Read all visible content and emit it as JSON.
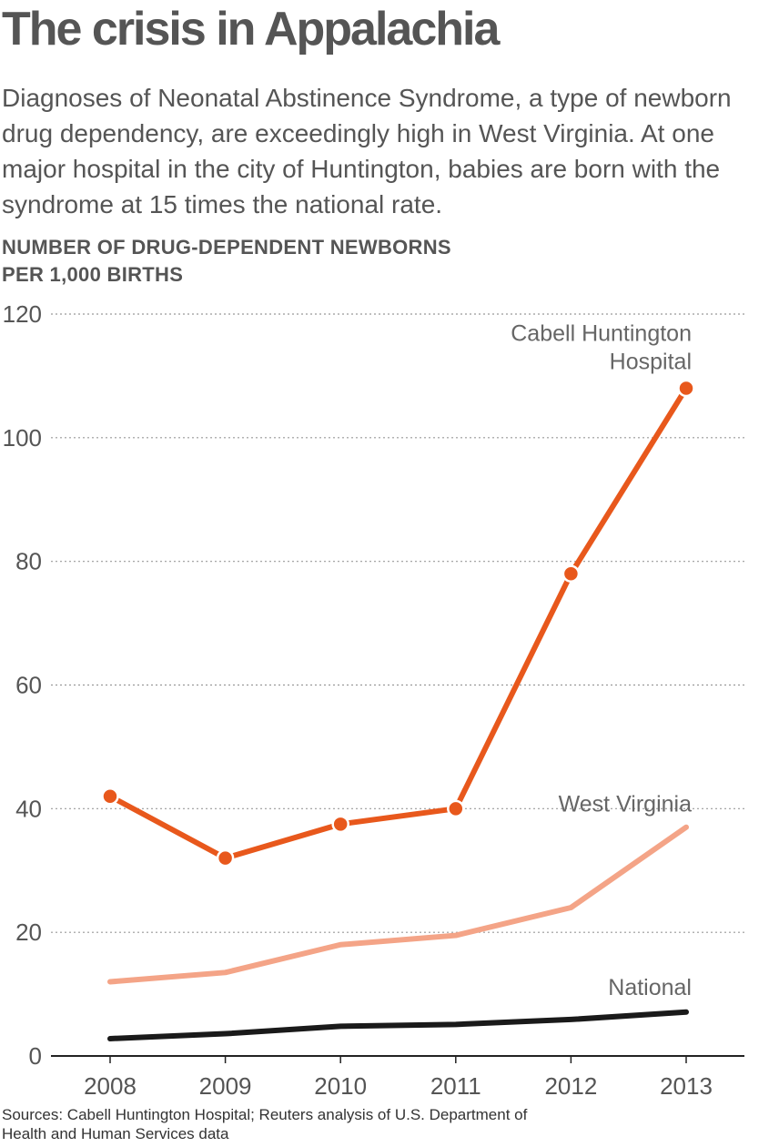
{
  "title": "The crisis in Appalachia",
  "subtitle": "Diagnoses of Neonatal Abstinence Syndrome, a type of newborn drug dependency, are exceedingly high in West Virginia. At one major hospital in the city of Huntington, babies are born with the syndrome at 15 times the national rate.",
  "ylabel_line1": "NUMBER OF DRUG-DEPENDENT NEWBORNS",
  "ylabel_line2": "PER 1,000 BIRTHS",
  "sources_line1": "Sources: Cabell Huntington Hospital; Reuters analysis of U.S. Department of",
  "sources_line2": "Health and Human Services data",
  "colors": {
    "cabell": "#e8581c",
    "west_virginia": "#f4a487",
    "national": "#1a1a1a",
    "grid": "#999999"
  },
  "chart_data": {
    "type": "line",
    "categories": [
      "2008",
      "2009",
      "2010",
      "2011",
      "2012",
      "2013"
    ],
    "ylim": [
      0,
      120
    ],
    "yticks": [
      0,
      20,
      40,
      60,
      80,
      100,
      120
    ],
    "grid": true,
    "xlabel": "",
    "ylabel": "NUMBER OF DRUG-DEPENDENT NEWBORNS PER 1,000 BIRTHS",
    "series": [
      {
        "name": "Cabell Huntington Hospital",
        "label_lines": [
          "Cabell Huntington",
          "Hospital"
        ],
        "values": [
          42,
          32,
          37.5,
          40,
          78,
          108
        ],
        "markers": true
      },
      {
        "name": "West Virginia",
        "label_lines": [
          "West Virginia"
        ],
        "values": [
          12,
          13.5,
          18,
          19.5,
          24,
          37
        ],
        "markers": false
      },
      {
        "name": "National",
        "label_lines": [
          "National"
        ],
        "values": [
          2.8,
          3.6,
          4.8,
          5.1,
          5.9,
          7.1
        ],
        "markers": false
      }
    ]
  }
}
